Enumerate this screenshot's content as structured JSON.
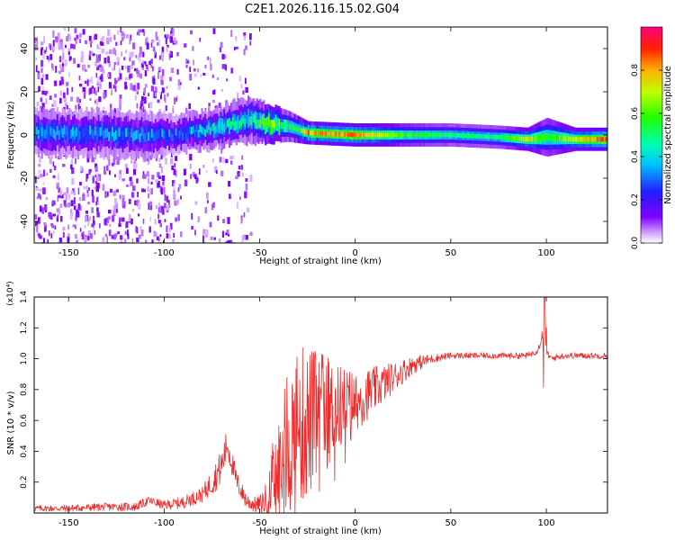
{
  "title": "C2E1.2026.116.15.02.G04",
  "chart_data": [
    {
      "type": "heatmap",
      "name": "spectrogram",
      "xlabel": "Height of straight line (km)",
      "ylabel": "Frequency (Hz)",
      "xlim": [
        -168,
        132
      ],
      "ylim": [
        -50,
        50
      ],
      "xticks": [
        -150,
        -100,
        -50,
        0,
        50,
        100
      ],
      "yticks": [
        -40,
        -20,
        0,
        20,
        40
      ],
      "colorbar": {
        "label": "Normalized spectral amplitude",
        "range": [
          0.0,
          1.0
        ],
        "ticks": [
          0.0,
          0.2,
          0.4,
          0.6,
          0.8
        ]
      },
      "signal_ridge": [
        {
          "x": -165,
          "freq": 1,
          "amp": 0.35,
          "width": 6
        },
        {
          "x": -140,
          "freq": 1,
          "amp": 0.35,
          "width": 6
        },
        {
          "x": -110,
          "freq": 0,
          "amp": 0.35,
          "width": 6
        },
        {
          "x": -95,
          "freq": 0,
          "amp": 0.3,
          "width": 5
        },
        {
          "x": -75,
          "freq": 3,
          "amp": 0.45,
          "width": 5
        },
        {
          "x": -55,
          "freq": 7,
          "amp": 0.45,
          "width": 6
        },
        {
          "x": -45,
          "freq": 5,
          "amp": 0.7,
          "width": 5
        },
        {
          "x": -35,
          "freq": 4,
          "amp": 0.5,
          "width": 4
        },
        {
          "x": -25,
          "freq": 1,
          "amp": 0.8,
          "width": 3
        },
        {
          "x": 0,
          "freq": 0,
          "amp": 0.85,
          "width": 3
        },
        {
          "x": 25,
          "freq": 0,
          "amp": 0.6,
          "width": 3
        },
        {
          "x": 50,
          "freq": 0,
          "amp": 0.5,
          "width": 3
        },
        {
          "x": 75,
          "freq": -1,
          "amp": 0.5,
          "width": 3
        },
        {
          "x": 90,
          "freq": -2,
          "amp": 0.75,
          "width": 3
        },
        {
          "x": 100,
          "freq": -1,
          "amp": 0.55,
          "width": 5
        },
        {
          "x": 115,
          "freq": -2,
          "amp": 0.75,
          "width": 3
        },
        {
          "x": 132,
          "freq": -2,
          "amp": 0.9,
          "width": 3
        }
      ],
      "noise_region": {
        "x_from": -168,
        "x_to": -55,
        "density": "high below -95 km"
      }
    },
    {
      "type": "line",
      "name": "snr",
      "xlabel": "Height of straight line (km)",
      "ylabel": "SNR (10 * v/v)",
      "multiplier": "(x10⁴)",
      "xlim": [
        -168,
        132
      ],
      "ylim": [
        0.0,
        1.4
      ],
      "xticks": [
        -150,
        -100,
        -50,
        0,
        50,
        100
      ],
      "yticks": [
        0.2,
        0.4,
        0.6,
        0.8,
        1.0,
        1.2,
        1.4
      ],
      "color": "#ee2b2b",
      "envelope": {
        "x": [
          -168,
          -150,
          -130,
          -115,
          -108,
          -100,
          -90,
          -80,
          -75,
          -70,
          -67,
          -62,
          -57,
          -52,
          -47,
          -40,
          -35,
          -30,
          -25,
          -20,
          -15,
          -10,
          -5,
          0,
          10,
          20,
          30,
          40,
          50,
          60,
          70,
          80,
          90,
          95,
          97,
          98,
          99,
          100,
          101,
          103,
          105,
          110,
          120,
          132
        ],
        "y": [
          0.03,
          0.03,
          0.04,
          0.04,
          0.08,
          0.05,
          0.07,
          0.12,
          0.2,
          0.3,
          0.45,
          0.2,
          0.08,
          0.05,
          0.08,
          0.25,
          0.45,
          0.55,
          0.58,
          0.62,
          0.65,
          0.68,
          0.7,
          0.72,
          0.8,
          0.88,
          0.96,
          1.0,
          1.02,
          1.02,
          1.02,
          1.02,
          1.02,
          1.05,
          1.1,
          1.2,
          0.85,
          1.05,
          1.02,
          1.0,
          1.01,
          1.02,
          1.02,
          1.02
        ]
      },
      "noise_amplitude": {
        "x": [
          -168,
          -100,
          -80,
          -70,
          -60,
          -50,
          -45,
          -40,
          -30,
          -20,
          -10,
          0,
          10,
          20,
          30,
          40,
          50,
          132
        ],
        "y": [
          0.02,
          0.03,
          0.05,
          0.12,
          0.06,
          0.05,
          0.15,
          0.4,
          0.55,
          0.45,
          0.3,
          0.2,
          0.15,
          0.1,
          0.06,
          0.03,
          0.02,
          0.02
        ]
      }
    }
  ]
}
